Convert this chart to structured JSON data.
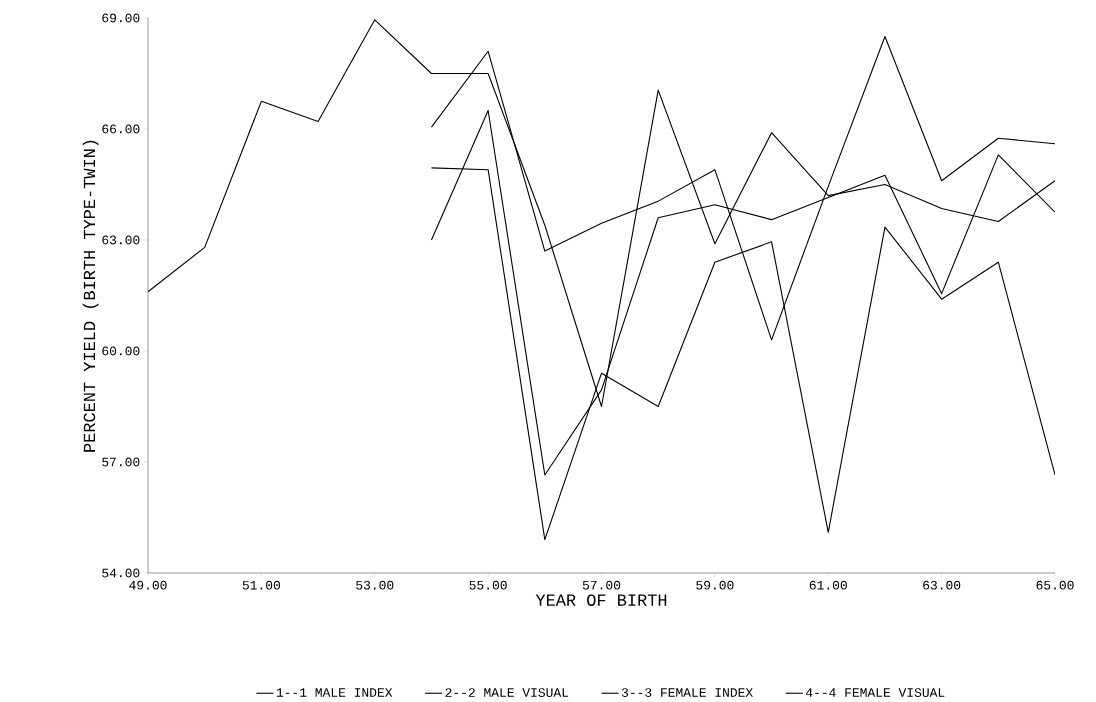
{
  "chart_data": {
    "type": "line",
    "xlabel": "YEAR OF BIRTH",
    "ylabel": "PERCENT YIELD (BIRTH TYPE-TWIN)",
    "x": [
      49,
      50,
      51,
      52,
      53,
      54,
      55,
      56,
      57,
      58,
      59,
      60,
      61,
      62,
      63,
      64,
      65
    ],
    "series": [
      {
        "name": "1--1  MALE INDEX",
        "color": "#000000",
        "values": [
          null,
          null,
          null,
          null,
          null,
          63.0,
          66.5,
          56.65,
          58.95,
          63.6,
          63.95,
          63.55,
          64.15,
          64.75,
          61.55,
          65.3,
          63.75
        ]
      },
      {
        "name": "2--2  MALE VISUAL",
        "color": "#000000",
        "values": [
          null,
          null,
          null,
          null,
          null,
          64.95,
          64.9,
          54.9,
          59.4,
          58.5,
          62.4,
          62.95,
          55.1,
          63.35,
          61.4,
          62.4,
          56.65
        ]
      },
      {
        "name": "3--3  FEMALE INDEX",
        "color": "#000000",
        "values": [
          null,
          null,
          null,
          null,
          null,
          66.05,
          68.1,
          62.7,
          63.45,
          64.05,
          64.9,
          60.3,
          64.45,
          68.5,
          64.6,
          65.75,
          65.6
        ]
      },
      {
        "name": "4--4  FEMALE VISUAL",
        "color": "#000000",
        "values": [
          61.6,
          62.8,
          66.75,
          66.2,
          68.95,
          67.5,
          67.5,
          63.4,
          58.5,
          67.05,
          62.9,
          65.9,
          64.2,
          64.5,
          63.85,
          63.5,
          64.6
        ]
      }
    ],
    "xlim": [
      49,
      65
    ],
    "ylim": [
      54,
      69
    ],
    "xticks": [
      {
        "value": 49,
        "label": "49.00"
      },
      {
        "value": 51,
        "label": "51.00"
      },
      {
        "value": 53,
        "label": "53.00"
      },
      {
        "value": 55,
        "label": "55.00"
      },
      {
        "value": 57,
        "label": "57.00"
      },
      {
        "value": 59,
        "label": "59.00"
      },
      {
        "value": 61,
        "label": "61.00"
      },
      {
        "value": 63,
        "label": "63.00"
      },
      {
        "value": 65,
        "label": "65.00"
      }
    ],
    "yticks": [
      {
        "value": 54,
        "label": "54.00"
      },
      {
        "value": 57,
        "label": "57.00"
      },
      {
        "value": 60,
        "label": "60.00"
      },
      {
        "value": 63,
        "label": "63.00"
      },
      {
        "value": 66,
        "label": "66.00"
      },
      {
        "value": 69,
        "label": "69.00"
      }
    ],
    "grid": false,
    "legend": "bottom",
    "marker": "none",
    "line_style": "solid"
  }
}
